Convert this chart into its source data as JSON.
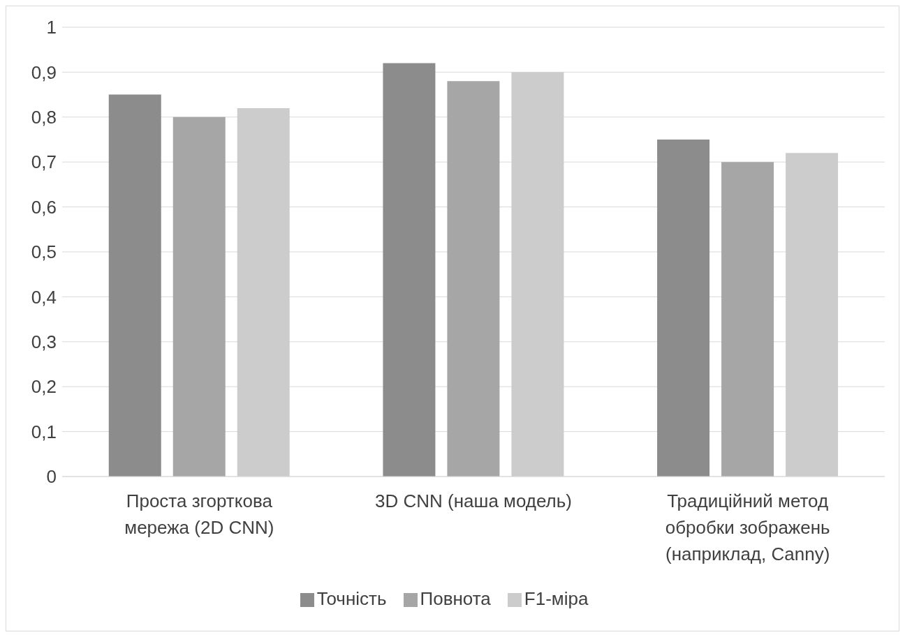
{
  "chart_data": {
    "type": "bar",
    "categories": [
      "Проста згорткова мережа (2D CNN)",
      "3D CNN (наша модель)",
      "Традиційний метод обробки зображень (наприклад, Canny)"
    ],
    "series": [
      {
        "name": "Точність",
        "color": "#8c8c8c",
        "values": [
          0.85,
          0.92,
          0.75
        ]
      },
      {
        "name": "Повнота",
        "color": "#a6a6a6",
        "values": [
          0.8,
          0.88,
          0.7
        ]
      },
      {
        "name": "F1-міра",
        "color": "#cccccc",
        "values": [
          0.82,
          0.9,
          0.72
        ]
      }
    ],
    "ylim": [
      0,
      1
    ],
    "yticks": [
      0,
      {
        "value": 0.1,
        "label": "0,1"
      },
      {
        "value": 0.2,
        "label": "0,2"
      },
      {
        "value": 0.3,
        "label": "0,3"
      },
      {
        "value": 0.4,
        "label": "0,4"
      },
      {
        "value": 0.5,
        "label": "0,5"
      },
      {
        "value": 0.6,
        "label": "0,6"
      },
      {
        "value": 0.7,
        "label": "0,7"
      },
      {
        "value": 0.8,
        "label": "0,8"
      },
      {
        "value": 0.9,
        "label": "0,9"
      },
      1
    ],
    "grid": "y",
    "legend": "bottom"
  }
}
